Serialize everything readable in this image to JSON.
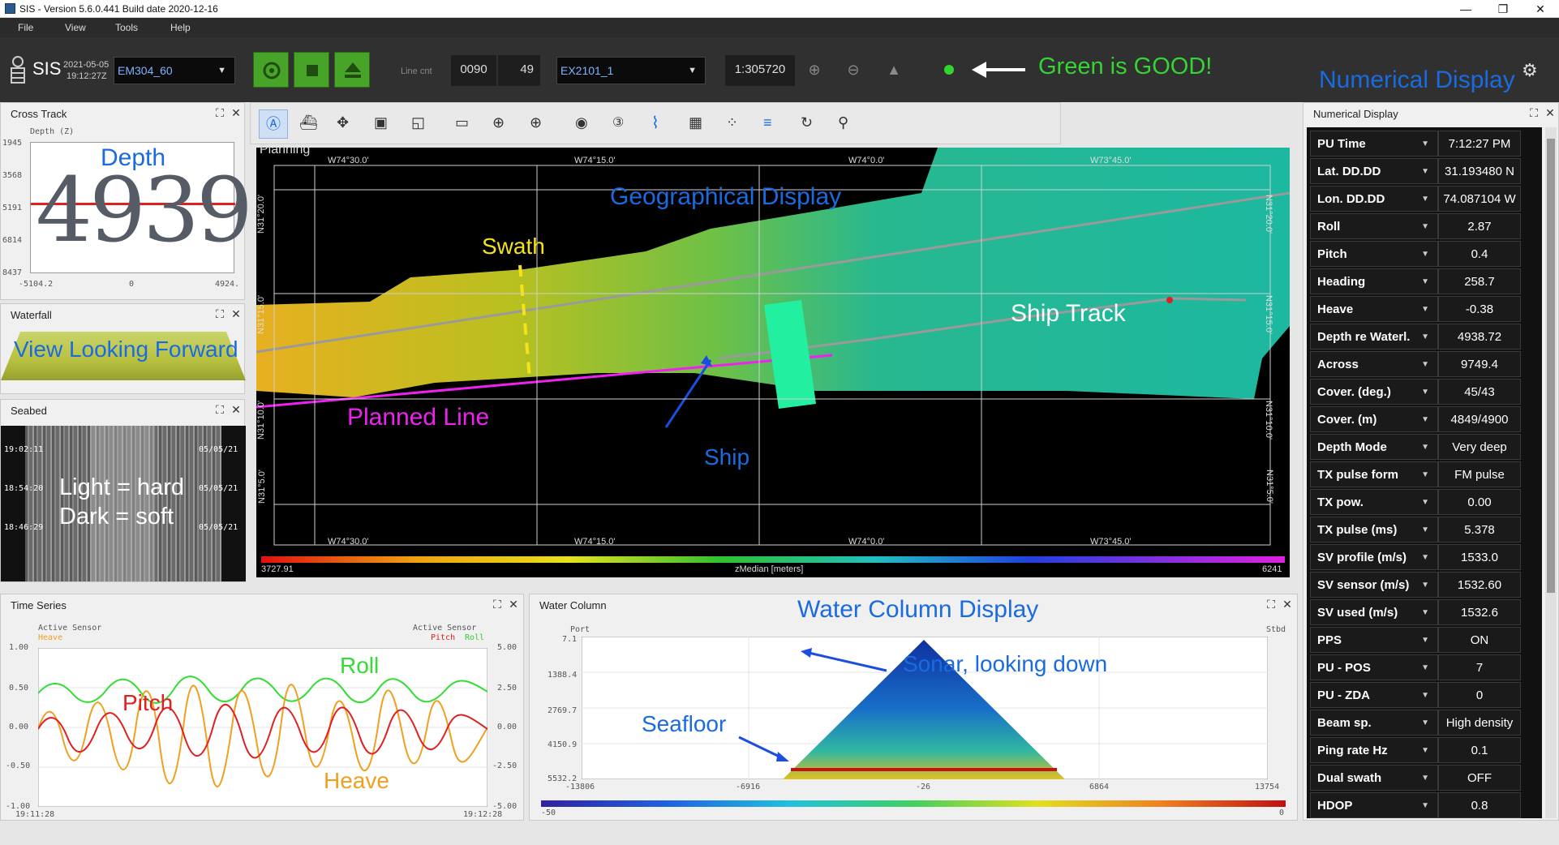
{
  "window": {
    "title": "SIS - Version 5.6.0.441 Build date 2020-12-16",
    "minimize": "—",
    "restore": "❐",
    "close": "✕"
  },
  "menu": [
    "File",
    "View",
    "Tools",
    "Help"
  ],
  "toolbar": {
    "brand": "SIS",
    "date": "2021-05-05",
    "time": "19:12:27Z",
    "sounder": "EM304_60",
    "line_cnt_label": "Line cnt",
    "line_cnt_value": "0090",
    "ping_value": "49",
    "survey": "EX2101_1",
    "scale": "1:305720",
    "status_annotation": "Green is GOOD!",
    "numerical_display_annotation": "Numerical Display"
  },
  "cross_track": {
    "title": "Cross Track",
    "axis_label": "Depth (Z)",
    "y_ticks": [
      "1945",
      "3568",
      "5191",
      "6814",
      "8437"
    ],
    "x_ticks": [
      "-5104.2",
      "0",
      "4924."
    ],
    "depth_value": "4939",
    "annotation": "Depth"
  },
  "waterfall": {
    "title": "Waterfall",
    "annotation": "View Looking Forward"
  },
  "seabed": {
    "title": "Seabed",
    "times": [
      "19:02:11",
      "18:54:20",
      "18:46:29"
    ],
    "dates": [
      "05/05/21",
      "05/05/21",
      "05/05/21"
    ],
    "annotation_line1": "Light = hard",
    "annotation_line2": "Dark = soft"
  },
  "geo": {
    "tab_label": "Planning",
    "annotation": "Geographical Display",
    "lon_top": [
      "W74°30.0'",
      "W74°15.0'",
      "W74°0.0'",
      "W73°45.0'"
    ],
    "lon_bottom": [
      "W74°30.0'",
      "W74°15.0'",
      "W74°0.0'",
      "W73°45.0'"
    ],
    "lat_left": [
      "N31°20.0'",
      "N31°15.0'",
      "N31°10.0'",
      "N31°5.0'"
    ],
    "lat_right": [
      "N31°20.0'",
      "N31°15.0'",
      "N31°10.0'",
      "N31°5.0'"
    ],
    "swath_label": "Swath",
    "ship_track_label": "Ship Track",
    "planned_line_label": "Planned Line",
    "ship_label": "Ship",
    "colorbar_min": "3727.91",
    "colorbar_label": "zMedian [meters]",
    "colorbar_max": "6241"
  },
  "time_series": {
    "title": "Time Series",
    "left_sensor_label": "Active Sensor",
    "left_series": "Heave",
    "right_sensor_label": "Active Sensor",
    "right_series_pitch": "Pitch",
    "right_series_roll": "Roll",
    "y_left": [
      "1.00",
      "0.50",
      "0.00",
      "-0.50",
      "-1.00"
    ],
    "y_right": [
      "5.00",
      "2.50",
      "0.00",
      "-2.50",
      "-5.00"
    ],
    "t_start": "19:11:28",
    "t_end": "19:12:28",
    "roll_label": "Roll",
    "pitch_label": "Pitch",
    "heave_label": "Heave"
  },
  "water_column": {
    "title": "Water Column",
    "annotation": "Water Column Display",
    "port": "Port",
    "stbd": "Stbd",
    "y_ticks": [
      "7.1",
      "1388.4",
      "2769.7",
      "4150.9",
      "5532.2"
    ],
    "x_ticks": [
      "-13806",
      "-6916",
      "-26",
      "6864",
      "13754"
    ],
    "colorbar_min": "-50",
    "colorbar_max": "0",
    "sonar_label": "Sonar, looking down",
    "seafloor_label": "Seafloor"
  },
  "numerical": {
    "title": "Numerical Display",
    "rows": [
      {
        "label": "PU Time",
        "value": "7:12:27 PM"
      },
      {
        "label": "Lat. DD.DD",
        "value": "31.193480 N"
      },
      {
        "label": "Lon. DD.DD",
        "value": "74.087104 W"
      },
      {
        "label": "Roll",
        "value": "2.87"
      },
      {
        "label": "Pitch",
        "value": "0.4"
      },
      {
        "label": "Heading",
        "value": "258.7"
      },
      {
        "label": "Heave",
        "value": "-0.38"
      },
      {
        "label": "Depth re Waterl.",
        "value": "4938.72"
      },
      {
        "label": "Across",
        "value": "9749.4"
      },
      {
        "label": "Cover. (deg.)",
        "value": "45/43"
      },
      {
        "label": "Cover. (m)",
        "value": "4849/4900"
      },
      {
        "label": "Depth Mode",
        "value": "Very deep"
      },
      {
        "label": "TX pulse form",
        "value": "FM pulse"
      },
      {
        "label": "TX pow.",
        "value": "0.00"
      },
      {
        "label": "TX pulse (ms)",
        "value": "5.378"
      },
      {
        "label": "SV profile (m/s)",
        "value": "1533.0"
      },
      {
        "label": "SV sensor (m/s)",
        "value": "1532.60"
      },
      {
        "label": "SV used (m/s)",
        "value": "1532.6"
      },
      {
        "label": "PPS",
        "value": "ON"
      },
      {
        "label": "PU - POS",
        "value": "7"
      },
      {
        "label": "PU - ZDA",
        "value": "0"
      },
      {
        "label": "Beam sp.",
        "value": "High density"
      },
      {
        "label": "Ping rate Hz",
        "value": "0.1"
      },
      {
        "label": "Dual swath",
        "value": "OFF"
      },
      {
        "label": "HDOP",
        "value": "0.8"
      }
    ]
  }
}
